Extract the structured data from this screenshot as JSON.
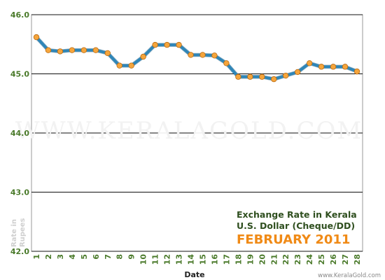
{
  "chart_data": {
    "type": "line",
    "title_lines": [
      "Exchange Rate in Kerala",
      "U.S. Dollar (Cheque/DD)"
    ],
    "subtitle": "FEBRUARY 2011",
    "xlabel": "Date",
    "ylabel_lines": [
      "Rate in",
      "Rupees"
    ],
    "ylim": [
      42.0,
      46.0
    ],
    "yticks": [
      "46.0",
      "45.0",
      "44.0",
      "43.0",
      "42.0"
    ],
    "categories": [
      "1",
      "2",
      "3",
      "4",
      "5",
      "6",
      "7",
      "8",
      "9",
      "10",
      "11",
      "12",
      "13",
      "14",
      "15",
      "16",
      "17",
      "18",
      "19",
      "20",
      "21",
      "22",
      "23",
      "24",
      "25",
      "26",
      "27",
      "28"
    ],
    "series": [
      {
        "values": [
          45.62,
          45.4,
          45.38,
          45.4,
          45.4,
          45.4,
          45.35,
          45.14,
          45.14,
          45.29,
          45.49,
          45.49,
          45.49,
          45.32,
          45.32,
          45.31,
          45.18,
          44.95,
          44.95,
          44.95,
          44.91,
          44.97,
          45.03,
          45.18,
          45.12,
          45.12,
          45.12,
          45.04
        ]
      }
    ],
    "grid": true,
    "line_color": "#2f86b8",
    "marker_color": "#f5a53c",
    "grid_color": "#111111"
  },
  "watermark": "WWW.KERALAGOLD.COM",
  "credit": "www.KeralaGold.com"
}
